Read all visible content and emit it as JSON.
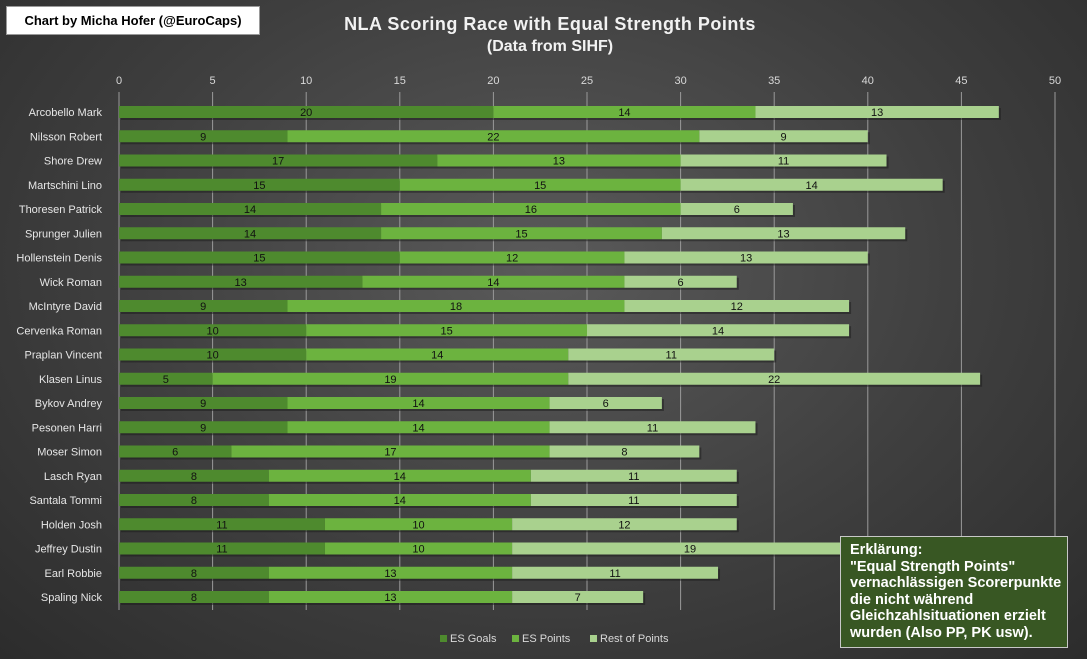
{
  "credit": "Chart by Micha Hofer (@EuroCaps)",
  "note": {
    "lines": [
      "Erklärung:",
      "\"Equal Strength Points\"",
      "vernachlässigen Scorerpunkte",
      "die nicht während",
      "Gleichzahlsituationen erzielt",
      "wurden (Also  PP, PK usw)."
    ]
  },
  "chart_data": {
    "type": "bar",
    "orientation": "horizontal",
    "stacked": true,
    "title": "NLA Scoring Race with Equal Strength Points",
    "subtitle": "(Data from SIHF)",
    "xlim": [
      0,
      50
    ],
    "xticks": [
      0,
      5,
      10,
      15,
      20,
      25,
      30,
      35,
      40,
      45,
      50
    ],
    "grid": true,
    "legend_position": "bottom",
    "categories": [
      "Arcobello Mark",
      "Nilsson Robert",
      "Shore Drew",
      "Martschini Lino",
      "Thoresen Patrick",
      "Sprunger Julien",
      "Hollenstein Denis",
      "Wick Roman",
      "McIntyre David",
      "Cervenka Roman",
      "Praplan Vincent",
      "Klasen Linus",
      "Bykov Andrey",
      "Pesonen Harri",
      "Moser Simon",
      "Lasch Ryan",
      "Santala Tommi",
      "Holden Josh",
      "Jeffrey Dustin",
      "Earl Robbie",
      "Spaling Nick"
    ],
    "series": [
      {
        "name": "ES Goals",
        "color": "#4e8a2e",
        "values": [
          20,
          9,
          17,
          15,
          14,
          14,
          15,
          13,
          9,
          10,
          10,
          5,
          9,
          9,
          6,
          8,
          8,
          11,
          11,
          8,
          8
        ]
      },
      {
        "name": "ES Points",
        "color": "#6cb33f",
        "values": [
          14,
          22,
          13,
          15,
          16,
          15,
          12,
          14,
          18,
          15,
          14,
          19,
          14,
          14,
          17,
          14,
          14,
          10,
          10,
          13,
          13
        ]
      },
      {
        "name": "Rest of Points",
        "color": "#a9d18e",
        "values": [
          13,
          9,
          11,
          14,
          6,
          13,
          13,
          6,
          12,
          14,
          11,
          22,
          6,
          11,
          8,
          11,
          11,
          12,
          19,
          11,
          7
        ]
      }
    ]
  }
}
